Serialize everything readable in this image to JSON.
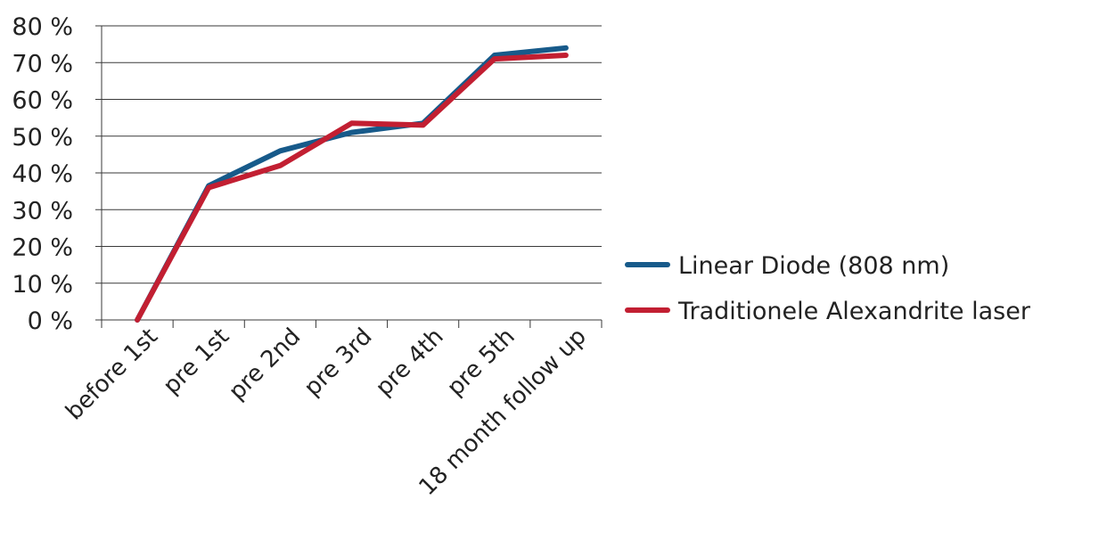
{
  "chart_data": {
    "type": "line",
    "categories": [
      "before 1st",
      "pre 1st",
      "pre 2nd",
      "pre 3rd",
      "pre 4th",
      "pre 5th",
      "18 month follow up"
    ],
    "series": [
      {
        "name": "Linear Diode (808 nm)",
        "color": "#175a8a",
        "values": [
          0,
          36.5,
          46,
          51,
          53.5,
          72,
          74
        ]
      },
      {
        "name": "Traditionele Alexandrite laser",
        "color": "#c21f32",
        "values": [
          0,
          36,
          42,
          53.5,
          53,
          71,
          72
        ]
      }
    ],
    "y_ticks": [
      "0 %",
      "10 %",
      "20 %",
      "30 %",
      "40 %",
      "50 %",
      "60 %",
      "70 %",
      "80 %"
    ],
    "ylim": [
      0,
      80
    ],
    "y_unit": "%",
    "grid": true,
    "legend_position": "right"
  }
}
